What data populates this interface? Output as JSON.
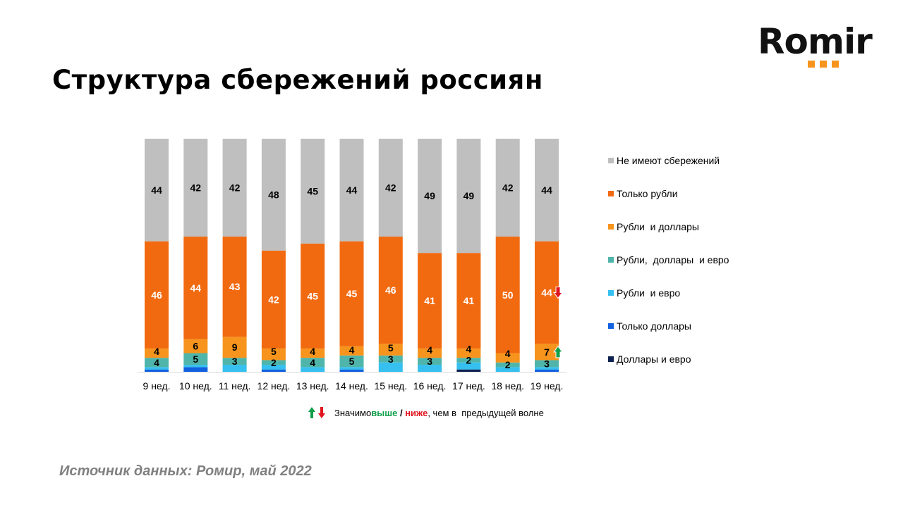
{
  "title": "Структура сбережений россиян",
  "logo": {
    "text": "Romir",
    "accent": "#f7941d"
  },
  "chart_data": {
    "type": "bar",
    "stacked": true,
    "categories": [
      "9 нед.",
      "10 нед.",
      "11 нед.",
      "12 нед.",
      "13 нед.",
      "14 нед.",
      "15 нед.",
      "16 нед.",
      "17 нед.",
      "18 нед.",
      "19 нед."
    ],
    "ylim": [
      0,
      100
    ],
    "grid": false,
    "legend_position": "right",
    "series": [
      {
        "name": "Доллары и евро",
        "color": "#0d2150",
        "label_color": "#000",
        "show_labels": false,
        "values": [
          0,
          0,
          0,
          0,
          0,
          0,
          0,
          0,
          1,
          0,
          0
        ]
      },
      {
        "name": "Только доллары",
        "color": "#1060e0",
        "label_color": "#000",
        "show_labels": false,
        "values": [
          1,
          2,
          0,
          1,
          0,
          1,
          0,
          0,
          0,
          0,
          1
        ]
      },
      {
        "name": "Рубли и евро",
        "color": "#35c0f0",
        "label_color": "#000",
        "show_labels": false,
        "values": [
          1,
          1,
          3,
          2,
          2,
          1,
          4,
          3,
          3,
          2,
          1
        ]
      },
      {
        "name": "Рубли, доллары и евро",
        "color": "#4fb5ab",
        "label_color": "#000",
        "show_labels": true,
        "values": [
          4,
          5,
          3,
          2,
          4,
          5,
          3,
          3,
          2,
          2,
          3
        ]
      },
      {
        "name": "Рубли и доллары",
        "color": "#f7941d",
        "label_color": "#000",
        "show_labels": true,
        "values": [
          4,
          6,
          9,
          5,
          4,
          4,
          5,
          4,
          4,
          4,
          7
        ]
      },
      {
        "name": "Только рубли",
        "color": "#f26a10",
        "label_color": "#fff",
        "show_labels": true,
        "values": [
          46,
          44,
          43,
          42,
          45,
          45,
          46,
          41,
          41,
          50,
          44
        ]
      },
      {
        "name": "Не имеют сбережений",
        "color": "#bfbfbf",
        "label_color": "#000",
        "show_labels": true,
        "values": [
          44,
          42,
          42,
          48,
          45,
          44,
          42,
          49,
          49,
          42,
          44
        ]
      }
    ],
    "significance_markers": [
      {
        "category": "19 нед.",
        "series": "Только рубли",
        "direction": "down",
        "color": "#e0141e"
      },
      {
        "category": "19 нед.",
        "series": "Рубли и доллары",
        "direction": "up",
        "color": "#11a04a"
      }
    ]
  },
  "legend": [
    "Не имеют сбережений",
    "Только рубли",
    "Рубли  и доллары",
    "Рубли,  доллары  и евро",
    "Рубли  и евро",
    "Только доллары",
    "Доллары и евро"
  ],
  "note": {
    "prefix": "Значимо ",
    "higher": "выше",
    "sep": " / ",
    "lower": "ниже",
    "suffix": ", чем в  предыдущей волне",
    "higher_color": "#11a04a",
    "lower_color": "#e0141e"
  },
  "source": "Источник данных: Ромир, май 2022"
}
